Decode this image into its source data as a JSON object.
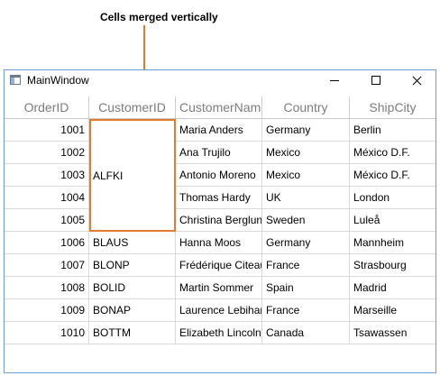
{
  "callout": {
    "text": "Cells merged vertically",
    "color": "#e07b2f"
  },
  "window": {
    "title": "MainWindow",
    "icon": "window-app-icon",
    "controls": [
      "minimize-icon",
      "maximize-icon",
      "close-icon"
    ]
  },
  "grid": {
    "columns": [
      "OrderID",
      "CustomerID",
      "CustomerName",
      "Country",
      "ShipCity"
    ],
    "merged_customer_id": "ALFKI",
    "rows": [
      {
        "order_id": "1001",
        "customer_id": "",
        "customer_name": "Maria Anders",
        "country": "Germany",
        "ship_city": "Berlin"
      },
      {
        "order_id": "1002",
        "customer_id": "",
        "customer_name": "Ana Trujilo",
        "country": "Mexico",
        "ship_city": "México D.F."
      },
      {
        "order_id": "1003",
        "customer_id": "",
        "customer_name": "Antonio Moreno",
        "country": "Mexico",
        "ship_city": "México D.F."
      },
      {
        "order_id": "1004",
        "customer_id": "",
        "customer_name": "Thomas Hardy",
        "country": "UK",
        "ship_city": "London"
      },
      {
        "order_id": "1005",
        "customer_id": "",
        "customer_name": "Christina Berglund",
        "country": "Sweden",
        "ship_city": "Luleå"
      },
      {
        "order_id": "1006",
        "customer_id": "BLAUS",
        "customer_name": "Hanna Moos",
        "country": "Germany",
        "ship_city": "Mannheim"
      },
      {
        "order_id": "1007",
        "customer_id": "BLONP",
        "customer_name": "Frédérique Citeaux",
        "country": "France",
        "ship_city": "Strasbourg"
      },
      {
        "order_id": "1008",
        "customer_id": "BOLID",
        "customer_name": "Martin Sommer",
        "country": "Spain",
        "ship_city": "Madrid"
      },
      {
        "order_id": "1009",
        "customer_id": "BONAP",
        "customer_name": "Laurence Lebihan",
        "country": "France",
        "ship_city": "Marseille"
      },
      {
        "order_id": "1010",
        "customer_id": "BOTTM",
        "customer_name": "Elizabeth Lincoln",
        "country": "Canada",
        "ship_city": "Tsawassen"
      }
    ]
  }
}
